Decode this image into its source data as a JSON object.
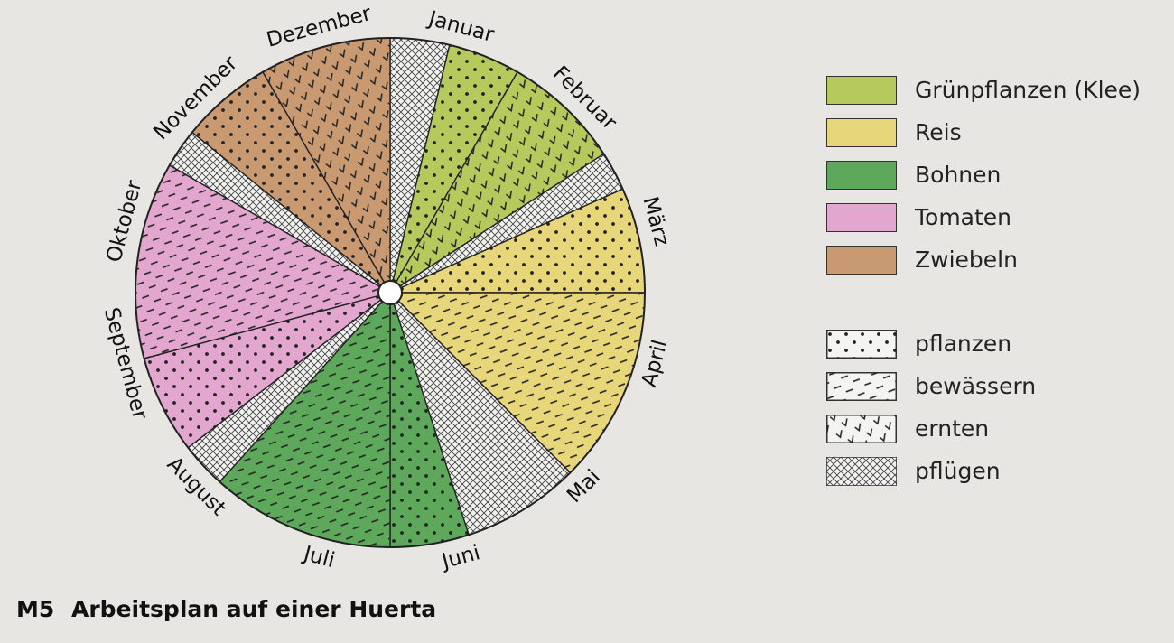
{
  "figure": {
    "label": "M5",
    "title": "Arbeitsplan auf einer Huerta"
  },
  "months": [
    "Januar",
    "Februar",
    "März",
    "April",
    "Mai",
    "Juni",
    "Juli",
    "August",
    "September",
    "Oktober",
    "November",
    "Dezember"
  ],
  "crops": [
    {
      "key": "gruen",
      "label": "Grünpflanzen (Klee)",
      "color": "#b5c95c"
    },
    {
      "key": "reis",
      "label": "Reis",
      "color": "#e7d77a"
    },
    {
      "key": "bohnen",
      "label": "Bohnen",
      "color": "#5da85a"
    },
    {
      "key": "tomaten",
      "label": "Tomaten",
      "color": "#e3a7cf"
    },
    {
      "key": "zwiebeln",
      "label": "Zwiebeln",
      "color": "#c99a72"
    }
  ],
  "activities": [
    {
      "key": "pflanzen",
      "label": "pflanzen"
    },
    {
      "key": "bewaessern",
      "label": "bewässern"
    },
    {
      "key": "ernten",
      "label": "ernten"
    },
    {
      "key": "pfluegen",
      "label": "pflügen"
    }
  ],
  "segments": [
    {
      "from": 0,
      "to": 0.45,
      "crop": "pflug",
      "activity": "pfluegen"
    },
    {
      "from": 0.45,
      "to": 1.0,
      "crop": "gruen",
      "activity": "pflanzen"
    },
    {
      "from": 1.0,
      "to": 1.9,
      "crop": "gruen",
      "activity": "ernten"
    },
    {
      "from": 1.9,
      "to": 2.2,
      "crop": "pflug",
      "activity": "pfluegen"
    },
    {
      "from": 2.2,
      "to": 3.0,
      "crop": "reis",
      "activity": "pflanzen"
    },
    {
      "from": 3.0,
      "to": 4.5,
      "crop": "reis",
      "activity": "bewaessern"
    },
    {
      "from": 4.5,
      "to": 5.4,
      "crop": "pflug",
      "activity": "pfluegen"
    },
    {
      "from": 5.4,
      "to": 6.0,
      "crop": "bohnen",
      "activity": "pflanzen"
    },
    {
      "from": 6.0,
      "to": 7.4,
      "crop": "bohnen",
      "activity": "bewaessern"
    },
    {
      "from": 7.4,
      "to": 7.75,
      "crop": "pflug",
      "activity": "pfluegen"
    },
    {
      "from": 7.75,
      "to": 8.5,
      "crop": "tomaten",
      "activity": "pflanzen"
    },
    {
      "from": 8.5,
      "to": 10.0,
      "crop": "tomaten",
      "activity": "bewaessern"
    },
    {
      "from": 10.0,
      "to": 10.3,
      "crop": "pflug",
      "activity": "pfluegen"
    },
    {
      "from": 10.3,
      "to": 11.0,
      "crop": "zwiebeln",
      "activity": "pflanzen"
    },
    {
      "from": 11.0,
      "to": 12.0,
      "crop": "zwiebeln",
      "activity": "ernten"
    }
  ]
}
